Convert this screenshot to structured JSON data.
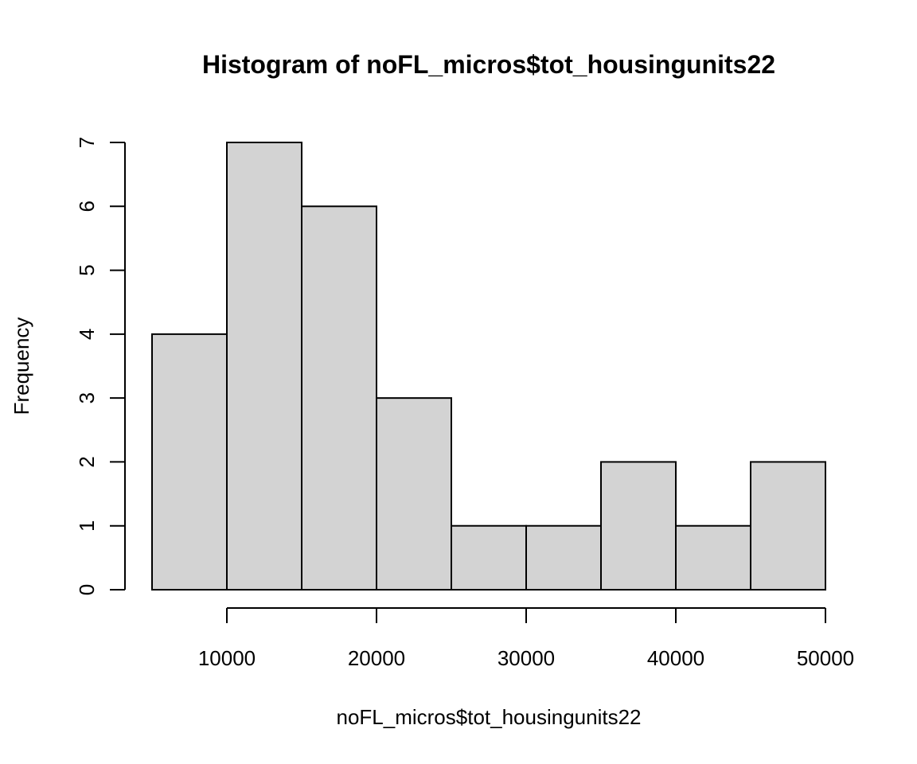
{
  "chart_data": {
    "type": "bar",
    "title": "Histogram of noFL_micros$tot_housingunits22",
    "xlabel": "noFL_micros$tot_housingunits22",
    "ylabel": "Frequency",
    "bin_edges": [
      5000,
      10000,
      15000,
      20000,
      25000,
      30000,
      35000,
      40000,
      45000,
      50000
    ],
    "values": [
      4,
      7,
      6,
      3,
      1,
      1,
      2,
      1,
      2
    ],
    "x_ticks": [
      10000,
      20000,
      30000,
      40000,
      50000
    ],
    "x_tick_labels": [
      "10000",
      "20000",
      "30000",
      "40000",
      "50000"
    ],
    "y_ticks": [
      0,
      1,
      2,
      3,
      4,
      5,
      6,
      7
    ],
    "y_tick_labels": [
      "0",
      "1",
      "2",
      "3",
      "4",
      "5",
      "6",
      "7"
    ],
    "xlim": [
      5000,
      50000
    ],
    "ylim": [
      0,
      7
    ],
    "grid": false,
    "legend": "none",
    "bar_fill": "#d3d3d3",
    "bar_stroke": "#000000"
  }
}
